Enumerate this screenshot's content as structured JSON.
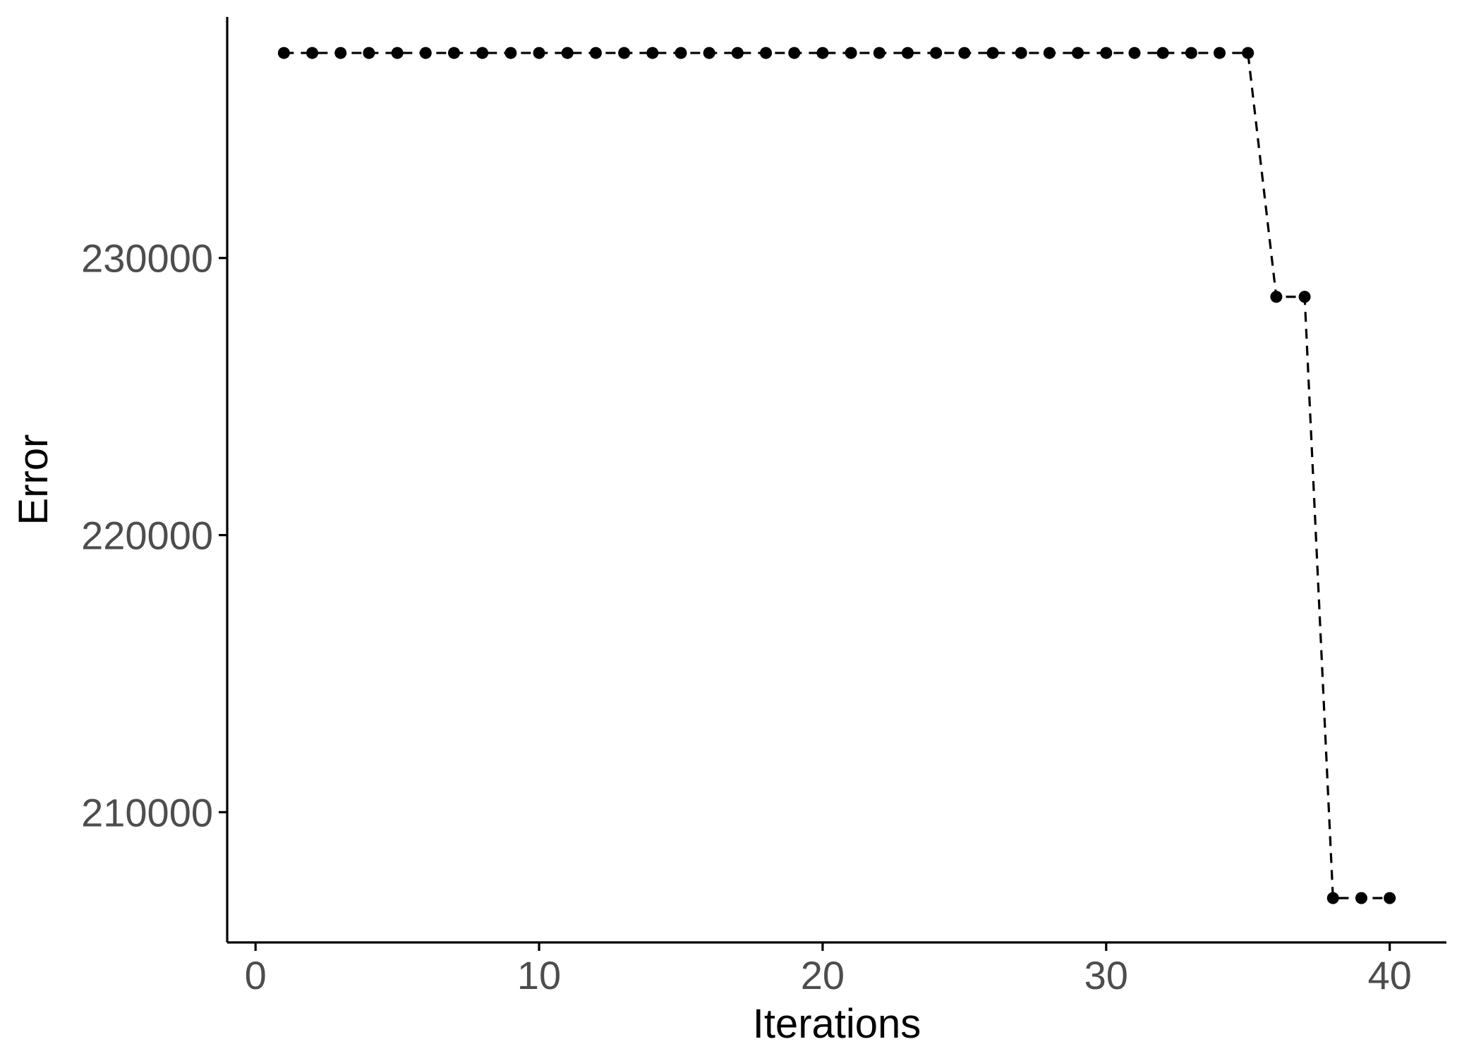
{
  "chart_data": {
    "type": "line",
    "title": "",
    "xlabel": "Iterations",
    "ylabel": "Error",
    "xlim": [
      -1,
      42
    ],
    "ylim": [
      205300,
      238700
    ],
    "x_ticks": [
      0,
      10,
      20,
      30,
      40
    ],
    "y_ticks": [
      210000,
      220000,
      230000
    ],
    "x_tick_labels": [
      "0",
      "10",
      "20",
      "30",
      "40"
    ],
    "y_tick_labels": [
      "210000",
      "220000",
      "230000"
    ],
    "grid": false,
    "legend": "none",
    "line_style": "dashed",
    "marker": "filled-circle",
    "color": "#000000",
    "series": [
      {
        "x": [
          1,
          2,
          3,
          4,
          5,
          6,
          7,
          8,
          9,
          10,
          11,
          12,
          13,
          14,
          15,
          16,
          17,
          18,
          19,
          20,
          21,
          22,
          23,
          24,
          25,
          26,
          27,
          28,
          29,
          30,
          31,
          32,
          33,
          34,
          35,
          36,
          37,
          38,
          39,
          40
        ],
        "values": [
          237400,
          237400,
          237400,
          237400,
          237400,
          237400,
          237400,
          237400,
          237400,
          237400,
          237400,
          237400,
          237400,
          237400,
          237400,
          237400,
          237400,
          237400,
          237400,
          237400,
          237400,
          237400,
          237400,
          237400,
          237400,
          237400,
          237400,
          237400,
          237400,
          237400,
          237400,
          237400,
          237400,
          237400,
          237400,
          228600,
          228600,
          206900,
          206900,
          206900
        ]
      }
    ]
  }
}
